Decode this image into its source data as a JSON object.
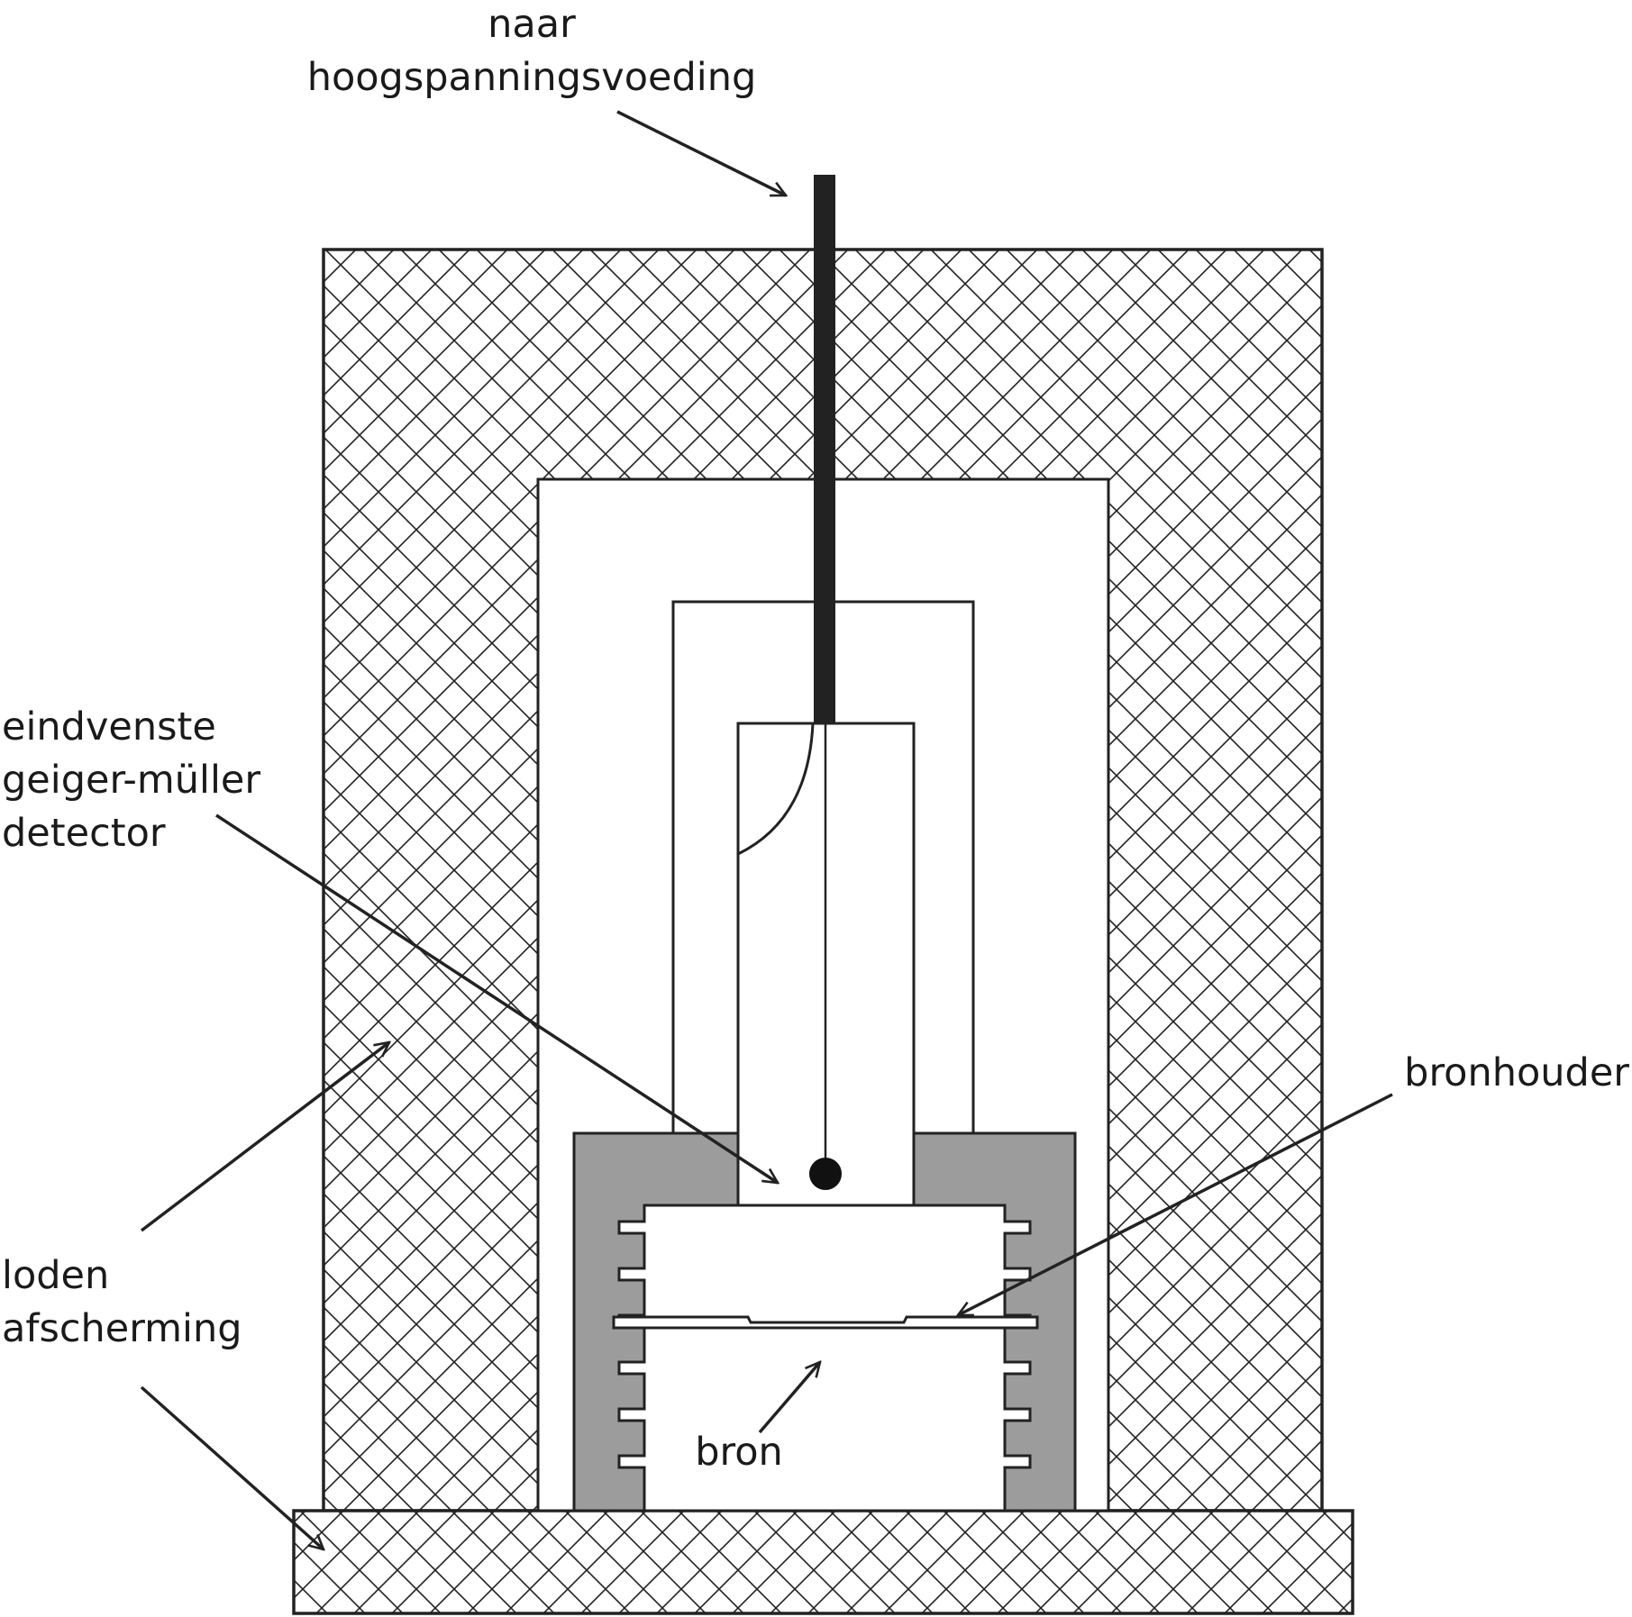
{
  "labels": {
    "power_supply": [
      "naar",
      "hoogspanningsvoeding"
    ],
    "detector": [
      "eindvenste",
      "geiger-müller",
      "detector"
    ],
    "source_holder": "bronhouder",
    "shielding": [
      "loden",
      "afscherming"
    ],
    "source": "bron"
  },
  "colors": {
    "line": "#222222",
    "lead_hatch": "#222222",
    "holder_fill": "#9c9c9c",
    "background": "#ffffff"
  }
}
